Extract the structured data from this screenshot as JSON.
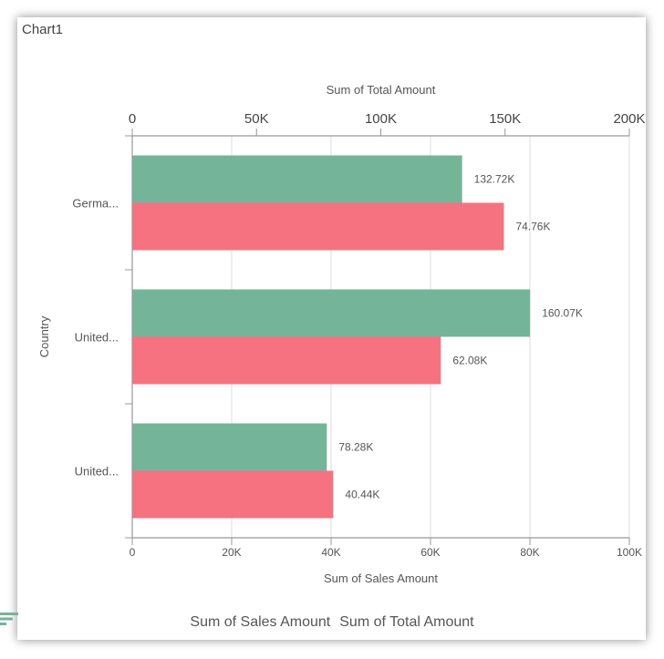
{
  "chart_data": {
    "type": "bar",
    "orientation": "horizontal",
    "title": "Chart1",
    "categories": [
      "Germa...",
      "United...",
      "United..."
    ],
    "ylabel": "Country",
    "top_axis": {
      "label": "Sum of Total Amount",
      "range": [
        0,
        200000
      ],
      "ticks": [
        "0",
        "50K",
        "100K",
        "150K",
        "200K"
      ]
    },
    "bottom_axis": {
      "label": "Sum of Sales Amount",
      "range": [
        0,
        100000
      ],
      "ticks": [
        "0",
        "20K",
        "40K",
        "60K",
        "80K",
        "100K"
      ]
    },
    "series": [
      {
        "name": "Sum of Sales Amount",
        "axis": "bottom",
        "color": "#F67280",
        "values": [
          74760,
          62080,
          40440
        ],
        "labels": [
          "74.76K",
          "62.08K",
          "40.44K"
        ]
      },
      {
        "name": "Sum of Total Amount",
        "axis": "top",
        "color": "#74B59A",
        "values": [
          132720,
          160070,
          78280
        ],
        "labels": [
          "132.72K",
          "160.07K",
          "78.28K"
        ]
      }
    ],
    "grid": true,
    "legend_position": "bottom"
  }
}
